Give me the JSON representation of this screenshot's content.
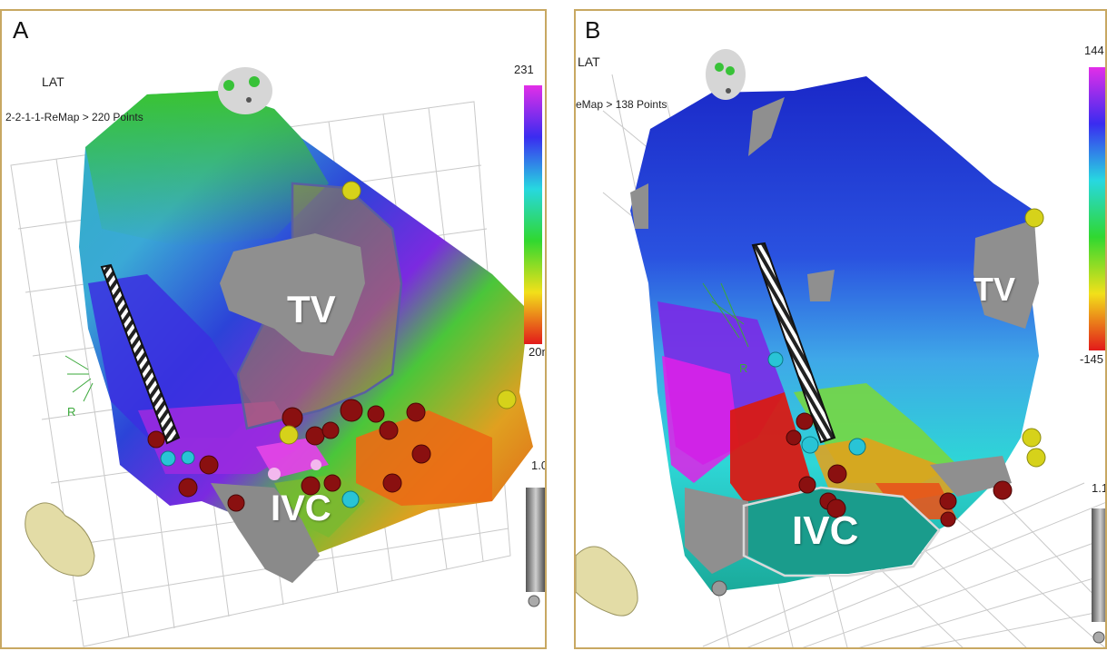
{
  "panels": [
    {
      "letter": "A",
      "lat_label": "LAT",
      "map_name": "2-2-1-1-ReMap > 220 Points",
      "scale_max": "231",
      "scale_min": "20m",
      "scale_side": "1.0",
      "tv_label": "TV",
      "ivc_label": "IVC",
      "axis_label": "R"
    },
    {
      "letter": "B",
      "lat_label": "LAT",
      "map_name": "eMap > 138 Points",
      "scale_max": "144",
      "scale_min": "-145",
      "scale_side": "1.1",
      "tv_label": "TV",
      "ivc_label": "IVC",
      "axis_label": "R"
    }
  ],
  "colors": {
    "frame": "#c8a862",
    "ablation_lesion": "#8a1010",
    "marker_yellow": "#d6d21a",
    "marker_cyan": "#29c4d6",
    "scar_gray": "#8f8f8f"
  }
}
